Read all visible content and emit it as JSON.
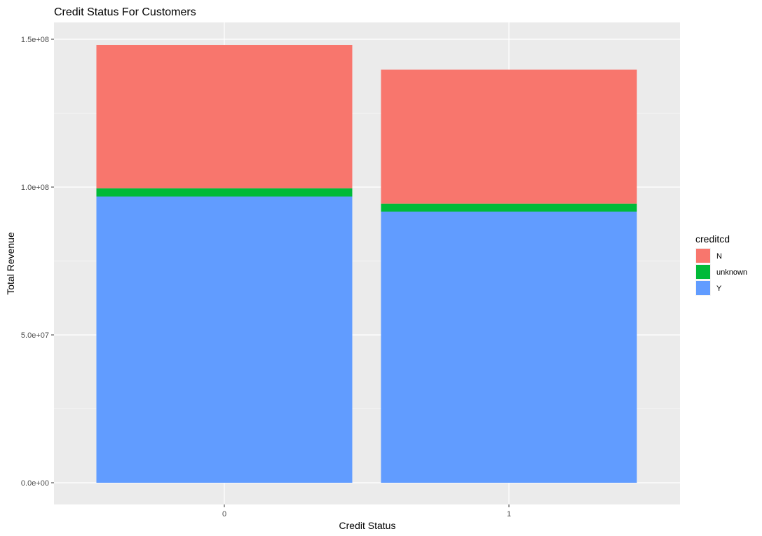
{
  "chart_data": {
    "type": "bar",
    "stacked": true,
    "title": "Credit Status For Customers",
    "xlabel": "Credit Status",
    "ylabel": "Total Revenue",
    "categories": [
      "0",
      "1"
    ],
    "y_ticks": [
      0,
      50000000,
      100000000,
      150000000
    ],
    "y_tick_labels": [
      "0.0e+00",
      "5.0e+07",
      "1.0e+08",
      "1.5e+08"
    ],
    "ylim": [
      0,
      150000000
    ],
    "legend": {
      "title": "creditcd",
      "position": "right"
    },
    "grid": true,
    "series": [
      {
        "name": "N",
        "color": "#F8766D",
        "values": [
          48500000,
          45300000
        ]
      },
      {
        "name": "unknown",
        "color": "#00BA38",
        "values": [
          2800000,
          2700000
        ]
      },
      {
        "name": "Y",
        "color": "#619CFF",
        "values": [
          96800000,
          91700000
        ]
      }
    ]
  }
}
